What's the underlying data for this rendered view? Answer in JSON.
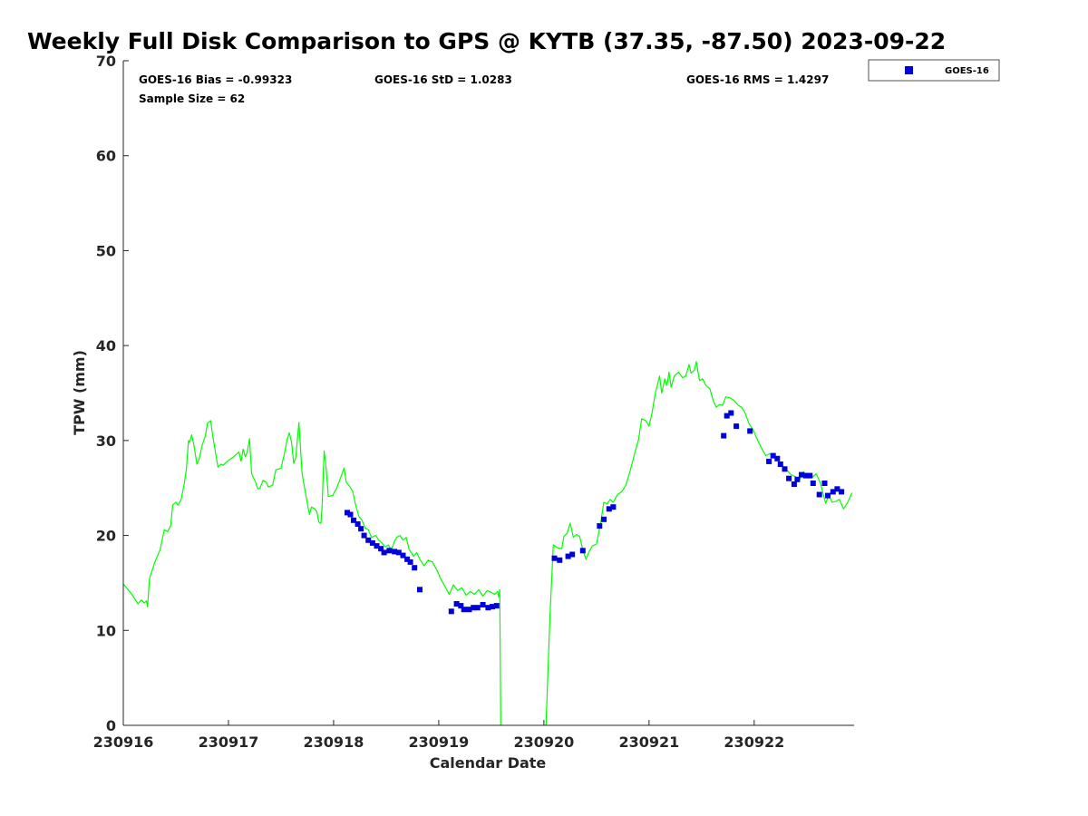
{
  "chart_data": {
    "type": "scatter",
    "title": "Weekly Full Disk Comparison to GPS @ KYTB (37.35, -87.50) 2023-09-22",
    "xlabel": "Calendar Date",
    "ylabel": "TPW (mm)",
    "xlim": [
      0,
      6.95
    ],
    "ylim": [
      0,
      70
    ],
    "x_ticks": [
      {
        "value": 0,
        "label": "230916"
      },
      {
        "value": 1,
        "label": "230917"
      },
      {
        "value": 2,
        "label": "230918"
      },
      {
        "value": 3,
        "label": "230919"
      },
      {
        "value": 4,
        "label": "230920"
      },
      {
        "value": 5,
        "label": "230921"
      },
      {
        "value": 6,
        "label": "230922"
      }
    ],
    "y_ticks": [
      0,
      10,
      20,
      30,
      40,
      50,
      60,
      70
    ],
    "stats": {
      "bias": "GOES-16 Bias = -0.99323",
      "std": "GOES-16 StD = 1.0283",
      "rms": "GOES-16 RMS = 1.4297",
      "sample_size": "Sample Size = 62"
    },
    "legend": {
      "position": "top-right",
      "entries": [
        "GOES-16"
      ]
    },
    "colors": {
      "gps_line": "#00ff00",
      "goes_marker": "#0000dd"
    },
    "series": [
      {
        "name": "GPS",
        "type": "line",
        "points": [
          [
            0.0,
            14.9
          ],
          [
            0.08,
            13.8
          ],
          [
            0.14,
            12.8
          ],
          [
            0.17,
            13.2
          ],
          [
            0.2,
            12.9
          ],
          [
            0.22,
            13.1
          ],
          [
            0.23,
            12.5
          ],
          [
            0.25,
            15.5
          ],
          [
            0.3,
            17.2
          ],
          [
            0.35,
            18.5
          ],
          [
            0.39,
            20.6
          ],
          [
            0.42,
            20.4
          ],
          [
            0.45,
            21.0
          ],
          [
            0.47,
            23.2
          ],
          [
            0.5,
            23.5
          ],
          [
            0.52,
            23.2
          ],
          [
            0.55,
            23.8
          ],
          [
            0.58,
            25.5
          ],
          [
            0.6,
            27.0
          ],
          [
            0.62,
            30.0
          ],
          [
            0.63,
            29.8
          ],
          [
            0.65,
            30.6
          ],
          [
            0.67,
            29.6
          ],
          [
            0.7,
            27.5
          ],
          [
            0.72,
            28.0
          ],
          [
            0.75,
            29.5
          ],
          [
            0.78,
            30.5
          ],
          [
            0.8,
            31.8
          ],
          [
            0.83,
            32.1
          ],
          [
            0.85,
            30.5
          ],
          [
            0.88,
            28.5
          ],
          [
            0.9,
            27.2
          ],
          [
            0.93,
            27.5
          ],
          [
            0.95,
            27.4
          ],
          [
            1.0,
            27.9
          ],
          [
            1.05,
            28.3
          ],
          [
            1.1,
            28.8
          ],
          [
            1.12,
            27.8
          ],
          [
            1.14,
            29.1
          ],
          [
            1.16,
            28.3
          ],
          [
            1.18,
            28.8
          ],
          [
            1.2,
            30.2
          ],
          [
            1.22,
            26.5
          ],
          [
            1.25,
            25.8
          ],
          [
            1.28,
            24.9
          ],
          [
            1.3,
            25.0
          ],
          [
            1.33,
            25.8
          ],
          [
            1.36,
            25.6
          ],
          [
            1.38,
            25.1
          ],
          [
            1.42,
            25.3
          ],
          [
            1.45,
            26.9
          ],
          [
            1.5,
            27.1
          ],
          [
            1.53,
            28.5
          ],
          [
            1.56,
            30.2
          ],
          [
            1.58,
            30.8
          ],
          [
            1.6,
            29.8
          ],
          [
            1.62,
            27.6
          ],
          [
            1.64,
            28.2
          ],
          [
            1.67,
            31.9
          ],
          [
            1.7,
            26.5
          ],
          [
            1.74,
            24.0
          ],
          [
            1.77,
            22.2
          ],
          [
            1.79,
            23.0
          ],
          [
            1.82,
            22.8
          ],
          [
            1.84,
            22.5
          ],
          [
            1.86,
            21.4
          ],
          [
            1.88,
            21.3
          ],
          [
            1.89,
            23.0
          ],
          [
            1.91,
            28.9
          ],
          [
            1.93,
            27.0
          ],
          [
            1.95,
            24.1
          ],
          [
            1.99,
            24.2
          ],
          [
            2.03,
            25.0
          ],
          [
            2.07,
            26.2
          ],
          [
            2.1,
            27.1
          ],
          [
            2.12,
            25.6
          ],
          [
            2.15,
            25.2
          ],
          [
            2.18,
            24.7
          ],
          [
            2.21,
            23.2
          ],
          [
            2.24,
            22.0
          ],
          [
            2.27,
            21.6
          ],
          [
            2.3,
            20.8
          ],
          [
            2.33,
            20.6
          ],
          [
            2.36,
            19.8
          ],
          [
            2.4,
            20.0
          ],
          [
            2.43,
            19.5
          ],
          [
            2.46,
            19.2
          ],
          [
            2.49,
            18.8
          ],
          [
            2.52,
            19.0
          ],
          [
            2.55,
            18.5
          ],
          [
            2.58,
            19.4
          ],
          [
            2.6,
            19.8
          ],
          [
            2.63,
            20.0
          ],
          [
            2.66,
            19.5
          ],
          [
            2.69,
            19.8
          ],
          [
            2.72,
            18.5
          ],
          [
            2.76,
            17.8
          ],
          [
            2.79,
            18.2
          ],
          [
            2.82,
            17.5
          ],
          [
            2.86,
            16.8
          ],
          [
            2.9,
            17.4
          ],
          [
            2.94,
            17.2
          ],
          [
            2.98,
            16.4
          ],
          [
            3.02,
            15.4
          ],
          [
            3.06,
            14.6
          ],
          [
            3.1,
            13.8
          ],
          [
            3.14,
            14.8
          ],
          [
            3.18,
            14.2
          ],
          [
            3.22,
            14.5
          ],
          [
            3.26,
            13.7
          ],
          [
            3.3,
            14.1
          ],
          [
            3.34,
            13.8
          ],
          [
            3.38,
            14.3
          ],
          [
            3.42,
            13.6
          ],
          [
            3.46,
            14.2
          ],
          [
            3.5,
            14.0
          ],
          [
            3.53,
            13.8
          ],
          [
            3.56,
            14.1
          ],
          [
            3.57,
            13.5
          ],
          [
            3.58,
            14.3
          ],
          [
            3.59,
            0.0
          ],
          null,
          [
            4.02,
            0.0
          ],
          [
            4.06,
            12.0
          ],
          [
            4.09,
            19.0
          ],
          [
            4.13,
            18.7
          ],
          [
            4.17,
            18.6
          ],
          [
            4.19,
            19.9
          ],
          [
            4.22,
            20.2
          ],
          [
            4.25,
            21.3
          ],
          [
            4.28,
            19.8
          ],
          [
            4.31,
            20.1
          ],
          [
            4.34,
            19.9
          ],
          [
            4.37,
            18.5
          ],
          [
            4.4,
            17.5
          ],
          [
            4.43,
            18.3
          ],
          [
            4.46,
            18.9
          ],
          [
            4.5,
            19.1
          ],
          [
            4.54,
            21.3
          ],
          [
            4.57,
            23.5
          ],
          [
            4.6,
            23.3
          ],
          [
            4.63,
            23.8
          ],
          [
            4.66,
            23.5
          ],
          [
            4.7,
            24.3
          ],
          [
            4.74,
            24.6
          ],
          [
            4.78,
            25.3
          ],
          [
            4.82,
            26.8
          ],
          [
            4.86,
            28.5
          ],
          [
            4.9,
            30.1
          ],
          [
            4.93,
            32.3
          ],
          [
            4.97,
            32.1
          ],
          [
            5.0,
            31.5
          ],
          [
            5.03,
            33.0
          ],
          [
            5.06,
            35.0
          ],
          [
            5.1,
            36.8
          ],
          [
            5.12,
            35.0
          ],
          [
            5.15,
            36.5
          ],
          [
            5.17,
            35.8
          ],
          [
            5.19,
            37.2
          ],
          [
            5.21,
            35.6
          ],
          [
            5.24,
            36.8
          ],
          [
            5.28,
            37.2
          ],
          [
            5.32,
            36.6
          ],
          [
            5.35,
            36.8
          ],
          [
            5.38,
            38.0
          ],
          [
            5.4,
            37.1
          ],
          [
            5.43,
            37.4
          ],
          [
            5.45,
            38.3
          ],
          [
            5.48,
            36.3
          ],
          [
            5.51,
            36.5
          ],
          [
            5.54,
            35.8
          ],
          [
            5.58,
            35.4
          ],
          [
            5.61,
            34.2
          ],
          [
            5.64,
            33.5
          ],
          [
            5.67,
            33.8
          ],
          [
            5.7,
            33.7
          ],
          [
            5.73,
            34.6
          ],
          [
            5.77,
            34.5
          ],
          [
            5.81,
            34.2
          ],
          [
            5.85,
            33.7
          ],
          [
            5.88,
            33.5
          ],
          [
            5.91,
            33.0
          ],
          [
            5.95,
            31.8
          ],
          [
            5.99,
            31.1
          ],
          [
            6.03,
            30.1
          ],
          [
            6.07,
            29.2
          ],
          [
            6.11,
            28.4
          ],
          [
            6.15,
            28.6
          ],
          [
            6.19,
            28.3
          ],
          [
            6.23,
            27.9
          ],
          [
            6.27,
            27.3
          ],
          [
            6.31,
            26.9
          ],
          [
            6.35,
            26.4
          ],
          [
            6.39,
            26.2
          ],
          [
            6.43,
            25.8
          ],
          [
            6.47,
            26.7
          ],
          [
            6.51,
            26.3
          ],
          [
            6.55,
            26.1
          ],
          [
            6.59,
            26.5
          ],
          [
            6.63,
            25.5
          ],
          [
            6.66,
            24.2
          ],
          [
            6.68,
            23.4
          ],
          [
            6.71,
            24.3
          ],
          [
            6.74,
            23.5
          ],
          [
            6.78,
            23.6
          ],
          [
            6.81,
            23.8
          ],
          [
            6.85,
            22.8
          ],
          [
            6.89,
            23.5
          ],
          [
            6.93,
            24.5
          ]
        ]
      },
      {
        "name": "GOES-16",
        "type": "scatter",
        "points": [
          [
            2.13,
            22.4
          ],
          [
            2.16,
            22.2
          ],
          [
            2.19,
            21.6
          ],
          [
            2.23,
            21.2
          ],
          [
            2.26,
            20.7
          ],
          [
            2.29,
            20.0
          ],
          [
            2.33,
            19.5
          ],
          [
            2.37,
            19.2
          ],
          [
            2.41,
            18.9
          ],
          [
            2.45,
            18.6
          ],
          [
            2.48,
            18.2
          ],
          [
            2.53,
            18.4
          ],
          [
            2.58,
            18.3
          ],
          [
            2.62,
            18.2
          ],
          [
            2.66,
            17.9
          ],
          [
            2.7,
            17.5
          ],
          [
            2.73,
            17.2
          ],
          [
            2.77,
            16.6
          ],
          [
            2.82,
            14.3
          ],
          [
            3.12,
            12.0
          ],
          [
            3.17,
            12.8
          ],
          [
            3.21,
            12.6
          ],
          [
            3.24,
            12.2
          ],
          [
            3.29,
            12.2
          ],
          [
            3.33,
            12.4
          ],
          [
            3.37,
            12.4
          ],
          [
            3.42,
            12.7
          ],
          [
            3.47,
            12.4
          ],
          [
            3.51,
            12.5
          ],
          [
            3.55,
            12.6
          ],
          [
            4.1,
            17.6
          ],
          [
            4.15,
            17.4
          ],
          [
            4.23,
            17.8
          ],
          [
            4.27,
            18.0
          ],
          [
            4.37,
            18.4
          ],
          [
            4.53,
            21.0
          ],
          [
            4.57,
            21.7
          ],
          [
            4.62,
            22.8
          ],
          [
            4.66,
            23.0
          ],
          [
            5.71,
            30.5
          ],
          [
            5.74,
            32.6
          ],
          [
            5.78,
            32.9
          ],
          [
            5.83,
            31.5
          ],
          [
            5.96,
            31.0
          ],
          [
            6.14,
            27.8
          ],
          [
            6.18,
            28.4
          ],
          [
            6.22,
            28.1
          ],
          [
            6.25,
            27.5
          ],
          [
            6.29,
            27.0
          ],
          [
            6.33,
            26.0
          ],
          [
            6.38,
            25.4
          ],
          [
            6.41,
            25.9
          ],
          [
            6.45,
            26.4
          ],
          [
            6.49,
            26.3
          ],
          [
            6.53,
            26.3
          ],
          [
            6.56,
            25.5
          ],
          [
            6.62,
            24.3
          ],
          [
            6.67,
            25.5
          ],
          [
            6.7,
            24.2
          ],
          [
            6.75,
            24.6
          ],
          [
            6.79,
            24.9
          ],
          [
            6.83,
            24.6
          ]
        ]
      }
    ]
  }
}
